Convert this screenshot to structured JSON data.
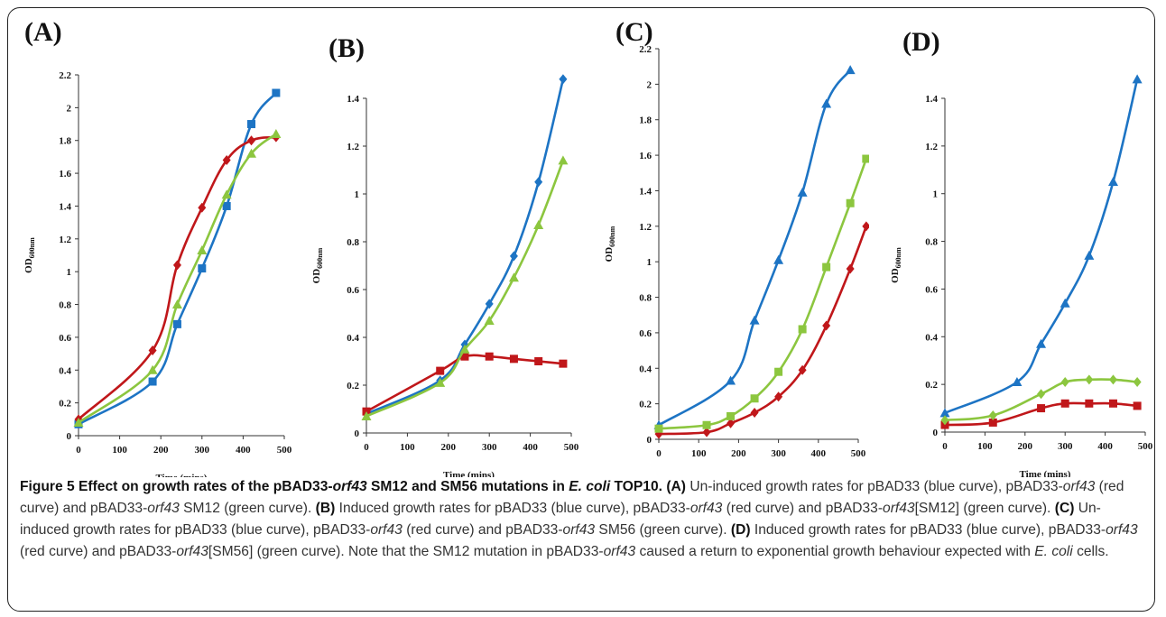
{
  "colors": {
    "blue": "#1d74c4",
    "red": "#c0171a",
    "green": "#8cc63f"
  },
  "chart_data": [
    {
      "panel_label": "(A)",
      "type": "line",
      "xlabel": "Time (mins)",
      "ylabel": "OD600nm",
      "xlim": [
        0,
        500
      ],
      "ylim": [
        0,
        2.2
      ],
      "xticks": [
        "0",
        "100",
        "200",
        "300",
        "400",
        "500"
      ],
      "yticks": [
        "0",
        "0.2",
        "0.4",
        "0.6",
        "0.8",
        "1",
        "1.2",
        "1.4",
        "1.6",
        "1.8",
        "2",
        "2.2"
      ],
      "series": [
        {
          "color": "blue",
          "marker": "square",
          "x": [
            0,
            180,
            240,
            300,
            360,
            420,
            480
          ],
          "y": [
            0.07,
            0.33,
            0.68,
            1.02,
            1.4,
            1.9,
            2.09
          ]
        },
        {
          "color": "red",
          "marker": "diamond",
          "x": [
            0,
            180,
            240,
            300,
            360,
            420,
            480
          ],
          "y": [
            0.1,
            0.52,
            1.04,
            1.39,
            1.68,
            1.8,
            1.82
          ]
        },
        {
          "color": "green",
          "marker": "triangle",
          "x": [
            0,
            180,
            240,
            300,
            360,
            420,
            480
          ],
          "y": [
            0.08,
            0.4,
            0.8,
            1.13,
            1.47,
            1.72,
            1.84
          ]
        }
      ]
    },
    {
      "panel_label": "(B)",
      "type": "line",
      "xlabel": "Time (mins)",
      "ylabel": "OD600nm",
      "xlim": [
        0,
        500
      ],
      "ylim": [
        0,
        1.4
      ],
      "xticks": [
        "0",
        "100",
        "200",
        "300",
        "400",
        "500"
      ],
      "yticks": [
        "0",
        "0.2",
        "0.4",
        "0.6",
        "0.8",
        "1",
        "1.2",
        "1.4"
      ],
      "series": [
        {
          "color": "blue",
          "marker": "diamond",
          "x": [
            0,
            180,
            240,
            300,
            360,
            420,
            480
          ],
          "y": [
            0.08,
            0.22,
            0.37,
            0.54,
            0.74,
            1.05,
            1.48
          ]
        },
        {
          "color": "red",
          "marker": "square",
          "x": [
            0,
            180,
            240,
            300,
            360,
            420,
            480
          ],
          "y": [
            0.09,
            0.26,
            0.32,
            0.32,
            0.31,
            0.3,
            0.29
          ]
        },
        {
          "color": "green",
          "marker": "triangle",
          "x": [
            0,
            180,
            240,
            300,
            360,
            420,
            480
          ],
          "y": [
            0.07,
            0.21,
            0.35,
            0.47,
            0.65,
            0.87,
            1.14
          ]
        }
      ]
    },
    {
      "panel_label": "(C)",
      "type": "line",
      "xlabel": "Time (mins)",
      "ylabel": "OD600nm",
      "xlim": [
        0,
        500
      ],
      "ylim": [
        0,
        2.2
      ],
      "xticks": [
        "0",
        "100",
        "200",
        "300",
        "400",
        "500"
      ],
      "yticks": [
        "0",
        "0.2",
        "0.4",
        "0.6",
        "0.8",
        "1",
        "1.2",
        "1.4",
        "1.6",
        "1.8",
        "2",
        "2.2"
      ],
      "series": [
        {
          "color": "blue",
          "marker": "triangle",
          "x": [
            0,
            180,
            240,
            300,
            360,
            420,
            480
          ],
          "y": [
            0.08,
            0.33,
            0.67,
            1.01,
            1.39,
            1.89,
            2.08
          ]
        },
        {
          "color": "red",
          "marker": "diamond",
          "x": [
            0,
            120,
            180,
            240,
            300,
            360,
            420,
            480,
            520
          ],
          "y": [
            0.03,
            0.04,
            0.09,
            0.15,
            0.24,
            0.39,
            0.64,
            0.96,
            1.2
          ]
        },
        {
          "color": "green",
          "marker": "square",
          "x": [
            0,
            120,
            180,
            240,
            300,
            360,
            420,
            480,
            520
          ],
          "y": [
            0.06,
            0.08,
            0.13,
            0.23,
            0.38,
            0.62,
            0.97,
            1.33,
            1.58
          ]
        }
      ]
    },
    {
      "panel_label": "(D)",
      "type": "line",
      "xlabel": "Time (mins)",
      "ylabel": "OD600nm",
      "xlim": [
        0,
        500
      ],
      "ylim": [
        0,
        1.4
      ],
      "xticks": [
        "0",
        "100",
        "200",
        "300",
        "400",
        "500"
      ],
      "yticks": [
        "0",
        "0.2",
        "0.4",
        "0.6",
        "0.8",
        "1",
        "1.2",
        "1.4"
      ],
      "series": [
        {
          "color": "blue",
          "marker": "triangle",
          "x": [
            0,
            180,
            240,
            300,
            360,
            420,
            480
          ],
          "y": [
            0.08,
            0.21,
            0.37,
            0.54,
            0.74,
            1.05,
            1.48
          ]
        },
        {
          "color": "red",
          "marker": "square",
          "x": [
            0,
            120,
            240,
            300,
            360,
            420,
            480
          ],
          "y": [
            0.03,
            0.04,
            0.1,
            0.12,
            0.12,
            0.12,
            0.11
          ]
        },
        {
          "color": "green",
          "marker": "diamond",
          "x": [
            0,
            120,
            240,
            300,
            360,
            420,
            480
          ],
          "y": [
            0.05,
            0.07,
            0.16,
            0.21,
            0.22,
            0.22,
            0.21
          ]
        }
      ]
    }
  ],
  "caption": {
    "title": "Figure 5 Effect on growth rates of the pBAD33-",
    "title_orf": "orf43",
    "title_mid": " SM12 and SM56 mutations in ",
    "title_ecoli": "E. coli",
    "title_end": " TOP10.",
    "a_label": "(A)",
    "a_text1": " Un-induced growth rates for pBAD33 (blue curve), pBAD33-",
    "a_orf": "orf43",
    "a_text2": " (red curve) and pBAD33-",
    "a_orf2": "orf43",
    "a_text3": " SM12 (green curve).",
    "b_label": "(B)",
    "b_text1": " Induced growth rates for pBAD33 (blue curve), pBAD33-",
    "b_orf": "orf43",
    "b_text2": " (red curve) and pBAD33-",
    "b_orf2": "orf43",
    "b_text3": "[SM12] (green curve).",
    "c_label": "(C)",
    "c_text1": " Un-induced growth rates for pBAD33 (blue curve), pBAD33-",
    "c_orf": "orf43",
    "c_text2": " (red curve) and pBAD33-",
    "c_orf2": "orf43",
    "c_text3": " SM56 (green curve).",
    "d_label": "(D)",
    "d_text1": " Induced growth rates for pBAD33 (blue curve), pBAD33-",
    "d_orf": "orf43",
    "d_text2": " (red curve) and pBAD33-",
    "d_orf2": "orf43",
    "d_text3": "[SM56] (green curve). Note that the SM12 mutation in pBAD33-",
    "d_orf3": "orf43",
    "d_text4": " caused a return to exponential growth behaviour expected with ",
    "d_ecoli": "E. coli",
    "d_text5": " cells."
  }
}
